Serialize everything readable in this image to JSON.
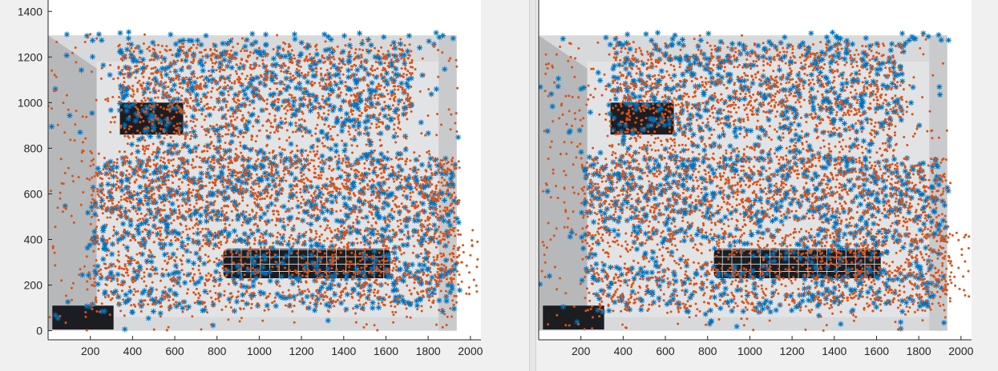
{
  "colors": {
    "feature_star": "#0072BD",
    "feature_dot": "#D95319",
    "axes_box": "#262626",
    "axes_bg": "#ffffff",
    "wall_light": "#d8d9da",
    "wall_shadow": "#8c8d8f",
    "dark_window": "#1c1d21"
  },
  "chart_data": [
    {
      "type": "scatter",
      "title": "",
      "xlabel": "",
      "ylabel": "",
      "xlim": [
        0,
        2050
      ],
      "ylim": [
        -40,
        1450
      ],
      "xticks": [
        200,
        400,
        600,
        800,
        1000,
        1200,
        1400,
        1600,
        1800,
        2000
      ],
      "yticks": [
        0,
        200,
        400,
        600,
        800,
        1000,
        1200,
        1400
      ],
      "grid": false,
      "background_image_extent": {
        "x": [
          0,
          1935
        ],
        "y": [
          0,
          1295
        ]
      },
      "series": [
        {
          "marker": "asterisk",
          "color": "#0072BD",
          "approx_count": 1500
        },
        {
          "marker": "dot",
          "color": "#D95319",
          "approx_count": 4000
        }
      ]
    },
    {
      "type": "scatter",
      "title": "",
      "xlabel": "",
      "ylabel": "",
      "xlim": [
        0,
        2050
      ],
      "ylim": [
        -40,
        1450
      ],
      "xticks": [
        200,
        400,
        600,
        800,
        1000,
        1200,
        1400,
        1600,
        1800,
        2000
      ],
      "yticks": [],
      "grid": false,
      "background_image_extent": {
        "x": [
          0,
          1935
        ],
        "y": [
          0,
          1295
        ]
      },
      "series": [
        {
          "marker": "asterisk",
          "color": "#0072BD",
          "approx_count": 1500
        },
        {
          "marker": "dot",
          "color": "#D95319",
          "approx_count": 4000
        }
      ]
    }
  ]
}
